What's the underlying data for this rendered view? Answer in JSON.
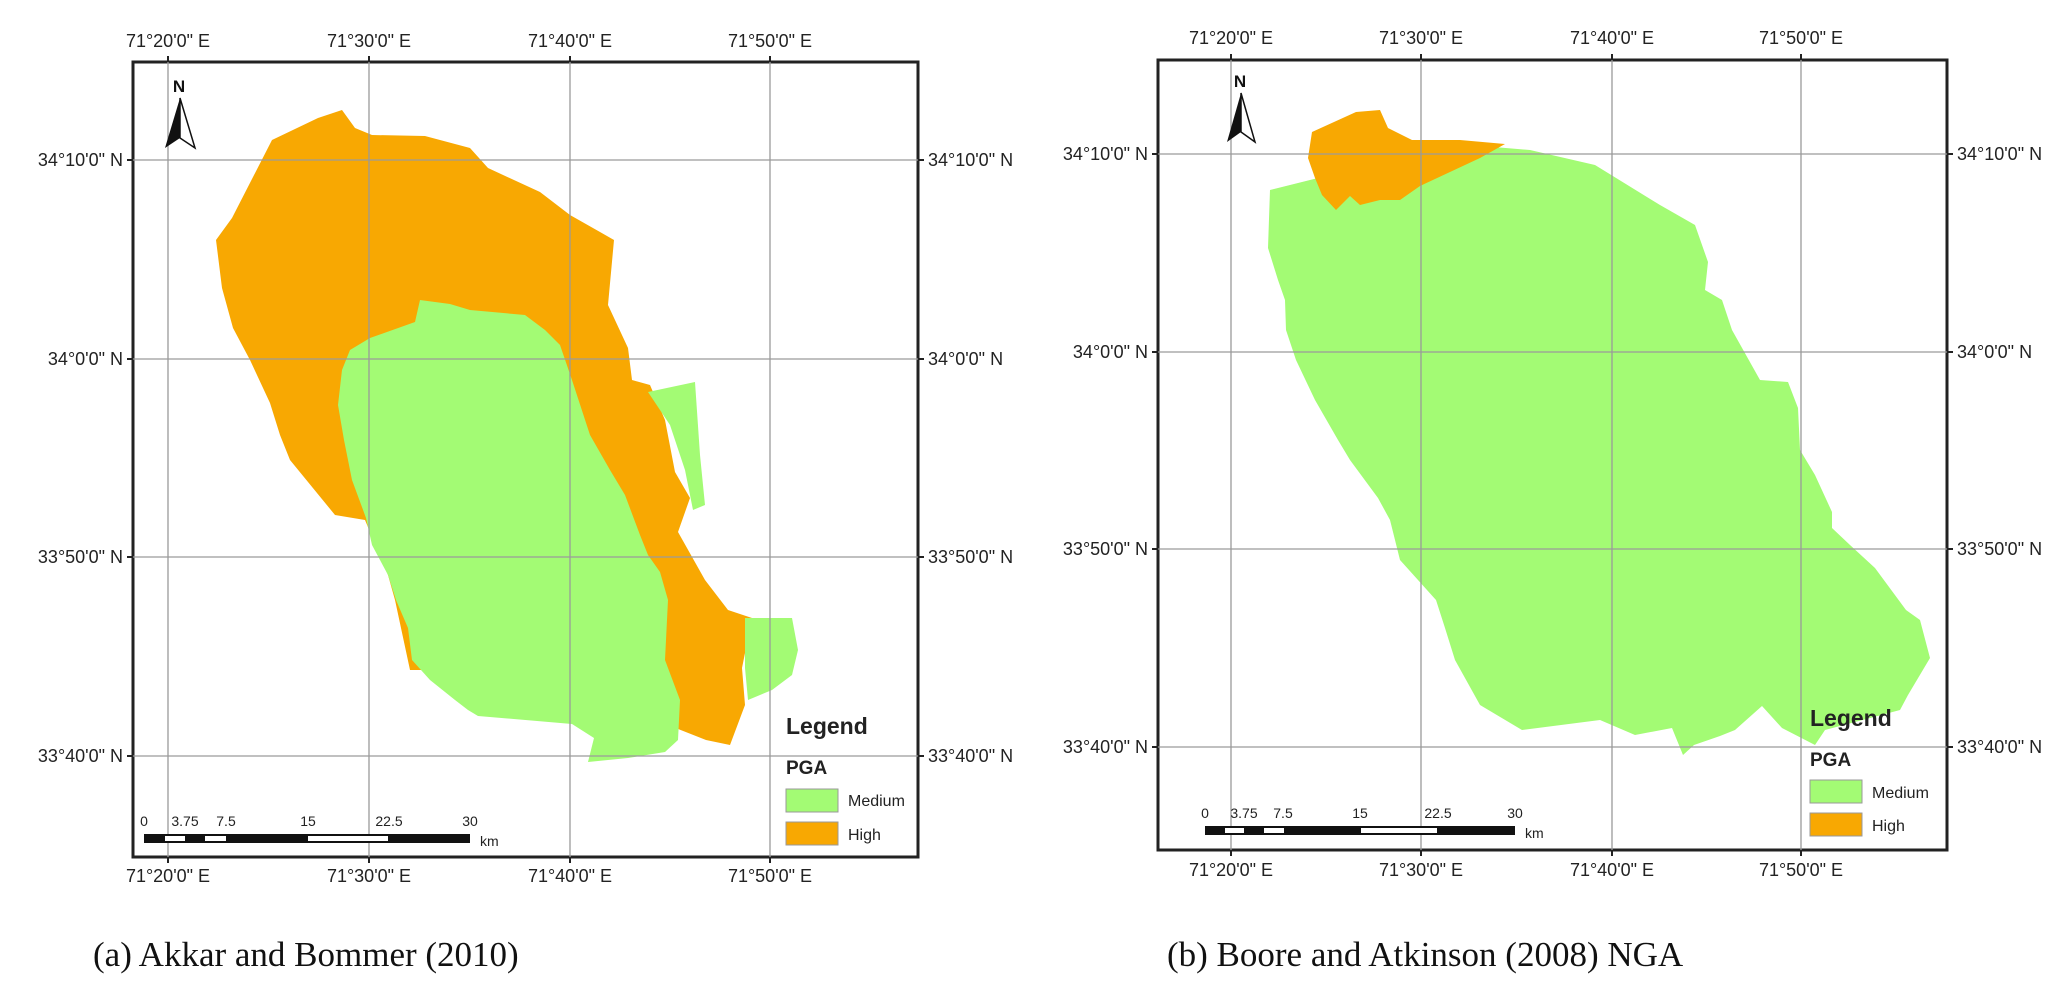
{
  "maps": [
    {
      "top_ticks": [
        "71°20'0\" E",
        "71°30'0\" E",
        "71°40'0\" E",
        "71°50'0\" E"
      ],
      "bottom_ticks": [
        "71°20'0\" E",
        "71°30'0\" E",
        "71°40'0\" E",
        "71°50'0\" E"
      ],
      "left_ticks": [
        "34°10'0\" N",
        "34°0'0\" N",
        "33°50'0\" N",
        "33°40'0\" N"
      ],
      "right_ticks": [
        "34°10'0\" N",
        "34°0'0\" N",
        "33°50'0\" N",
        "33°40'0\" N"
      ],
      "north": "N",
      "legend": {
        "title": "Legend",
        "subtitle": "PGA",
        "items": [
          "Medium",
          "High"
        ]
      },
      "scale": {
        "ticks": [
          "0",
          "3.75",
          "7.5",
          "15",
          "22.5",
          "30"
        ],
        "unit": "km"
      },
      "caption": "(a)    Akkar and Bommer (2010)"
    },
    {
      "top_ticks": [
        "71°20'0\" E",
        "71°30'0\" E",
        "71°40'0\" E",
        "71°50'0\" E"
      ],
      "bottom_ticks": [
        "71°20'0\" E",
        "71°30'0\" E",
        "71°40'0\" E",
        "71°50'0\" E"
      ],
      "left_ticks": [
        "34°10'0\" N",
        "34°0'0\" N",
        "33°50'0\" N",
        "33°40'0\" N"
      ],
      "right_ticks": [
        "34°10'0\" N",
        "34°0'0\" N",
        "33°50'0\" N",
        "33°40'0\" N"
      ],
      "north": "N",
      "legend": {
        "title": "Legend",
        "subtitle": "PGA",
        "items": [
          "Medium",
          "High"
        ]
      },
      "scale": {
        "ticks": [
          "0",
          "3.75",
          "7.5",
          "15",
          "22.5",
          "30"
        ],
        "unit": "km"
      },
      "caption": "(b)    Boore and Atkinson (2008) NGA"
    }
  ],
  "colors": {
    "medium": "#a3fb74",
    "high": "#f8a802",
    "grid": "#9a9a9a",
    "frame": "#222222"
  }
}
